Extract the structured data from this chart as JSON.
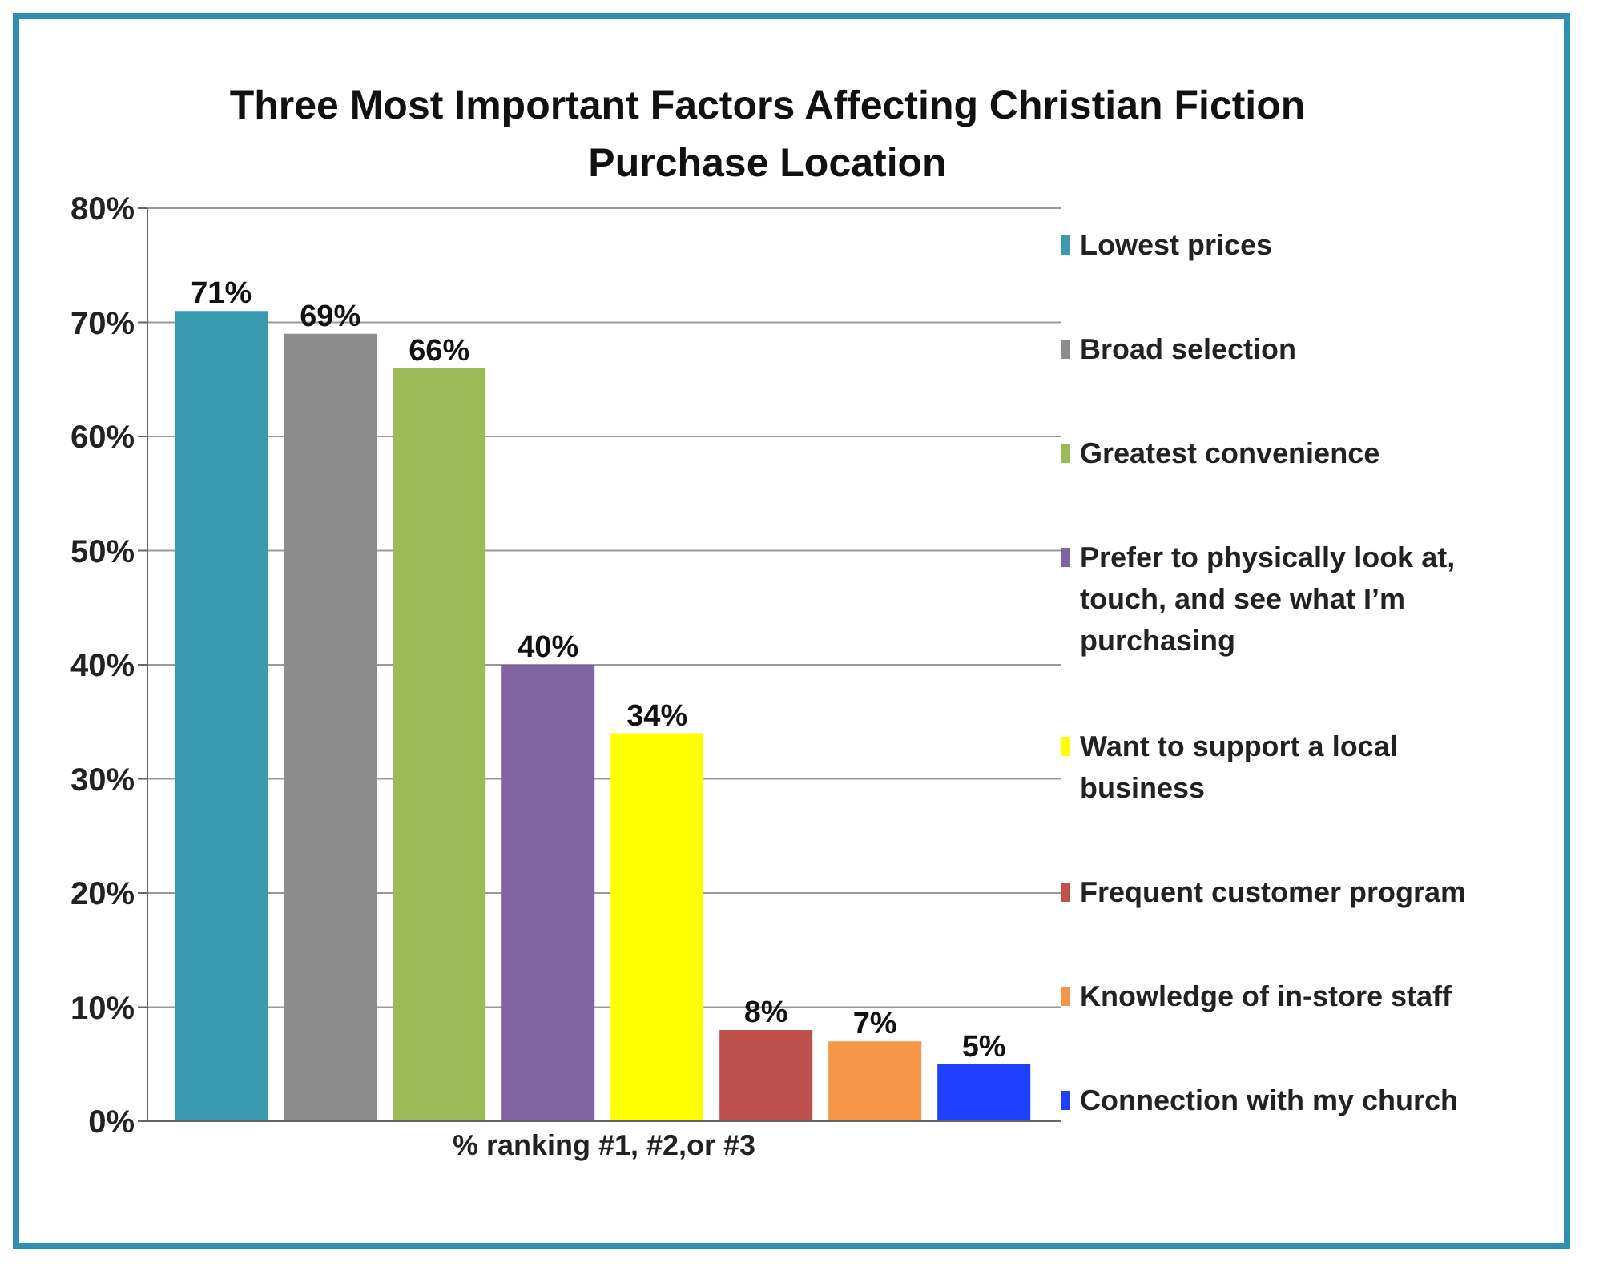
{
  "chart_data": {
    "type": "bar",
    "title": "Three Most Important Factors Affecting Christian Fiction Purchase Location",
    "categories": [
      "% ranking #1, #2,or #3"
    ],
    "series": [
      {
        "name": "Lowest prices",
        "color": "#3a9bb0",
        "values": [
          71
        ],
        "value_labels": [
          "71%"
        ]
      },
      {
        "name": "Broad selection",
        "color": "#8c8c8c",
        "values": [
          69
        ],
        "value_labels": [
          "69%"
        ]
      },
      {
        "name": "Greatest convenience",
        "color": "#9bbb59",
        "values": [
          66
        ],
        "value_labels": [
          "66%"
        ]
      },
      {
        "name": "Prefer to physically look at, touch, and see what I’m purchasing",
        "color": "#8064a2",
        "values": [
          40
        ],
        "value_labels": [
          "40%"
        ]
      },
      {
        "name": "Want to support a local business",
        "color": "#ffff00",
        "values": [
          34
        ],
        "value_labels": [
          "34%"
        ]
      },
      {
        "name": "Frequent customer program",
        "color": "#c0504d",
        "values": [
          8
        ],
        "value_labels": [
          "8%"
        ]
      },
      {
        "name": "Knowledge of in-store staff",
        "color": "#f79646",
        "values": [
          7
        ],
        "value_labels": [
          "7%"
        ]
      },
      {
        "name": "Connection with my church",
        "color": "#1f3fff",
        "values": [
          5
        ],
        "value_labels": [
          "5%"
        ]
      }
    ],
    "ylim": [
      0,
      80
    ],
    "yticks": [
      {
        "value": 0,
        "label": "0%"
      },
      {
        "value": 10,
        "label": "10%"
      },
      {
        "value": 20,
        "label": "20%"
      },
      {
        "value": 30,
        "label": "30%"
      },
      {
        "value": 40,
        "label": "40%"
      },
      {
        "value": 50,
        "label": "50%"
      },
      {
        "value": 60,
        "label": "60%"
      },
      {
        "value": 70,
        "label": "70%"
      },
      {
        "value": 80,
        "label": "80%"
      }
    ],
    "grid": "y",
    "legend": "right"
  }
}
